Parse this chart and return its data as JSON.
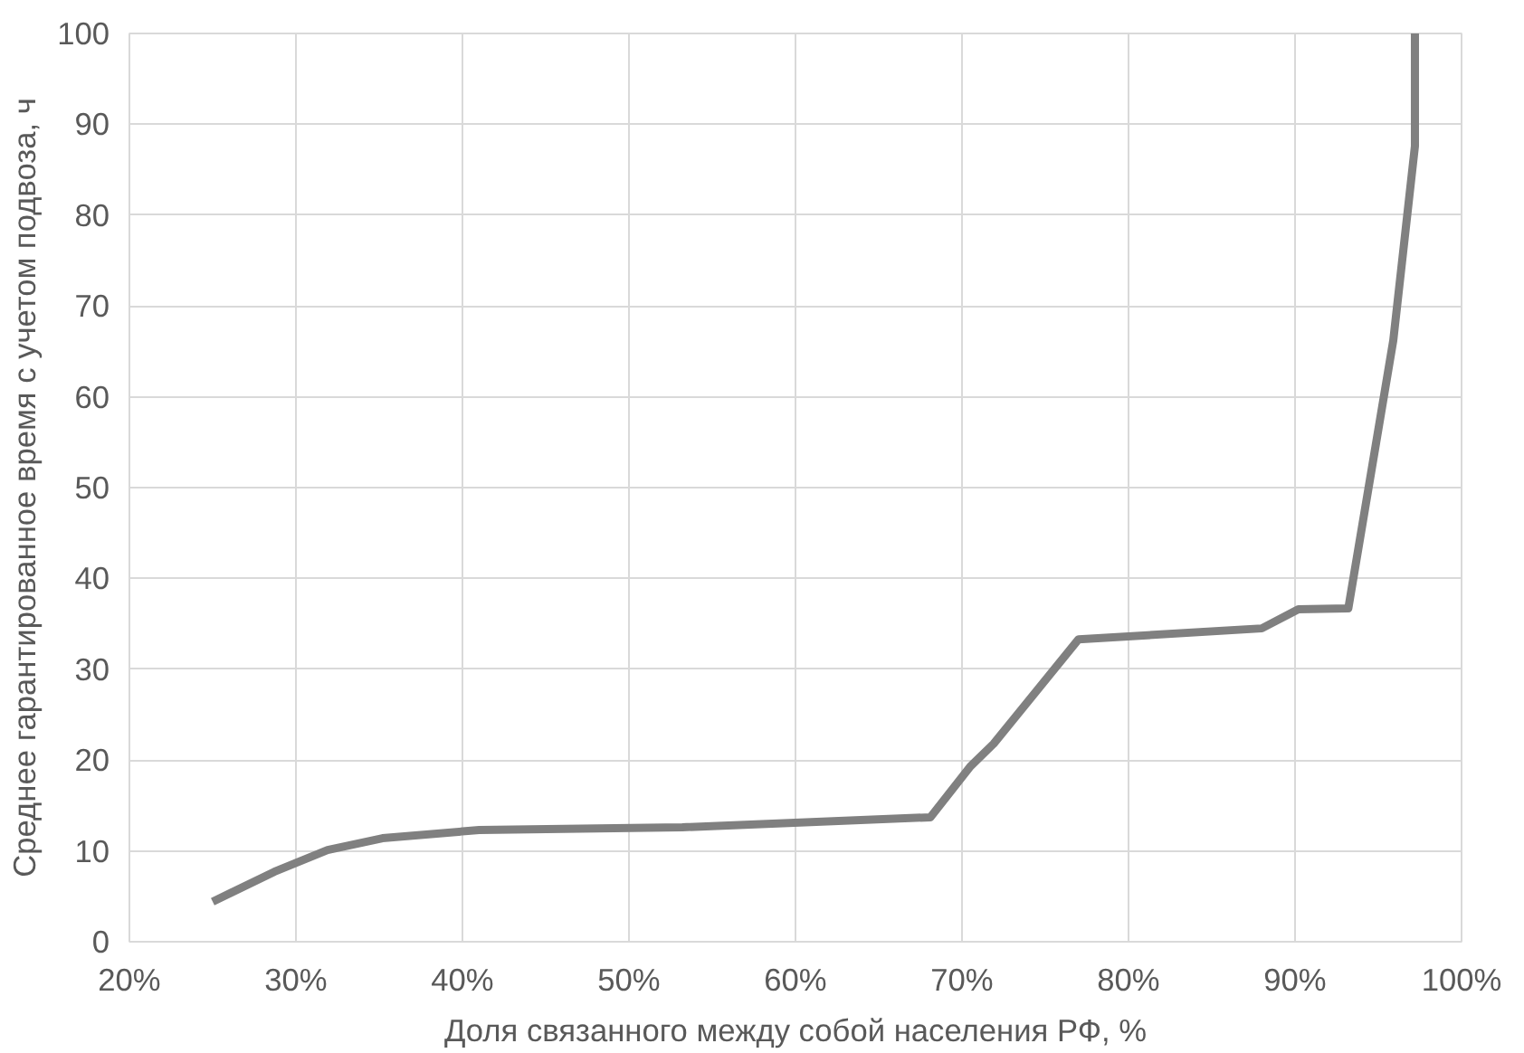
{
  "chart_data": {
    "type": "line",
    "xlabel": "Доля связанного между собой населения РФ, %",
    "ylabel": "Среднее гарантированное время с учетом подвоза, ч",
    "series": [
      {
        "color": "#808080",
        "x": [
          25.0,
          28.7,
          31.9,
          35.2,
          41.0,
          53.2,
          68.1,
          70.5,
          71.9,
          77.0,
          88.0,
          90.2,
          93.2,
          95.9,
          97.2,
          97.2
        ],
        "values": [
          4.4,
          7.7,
          10.1,
          11.4,
          12.3,
          12.6,
          13.7,
          19.3,
          21.8,
          33.3,
          34.5,
          36.6,
          36.7,
          66.2,
          87.6,
          100
        ]
      }
    ],
    "xlim": [
      20,
      100
    ],
    "xticks": [
      {
        "value": 20,
        "label": "20%"
      },
      {
        "value": 30,
        "label": "30%"
      },
      {
        "value": 40,
        "label": "40%"
      },
      {
        "value": 50,
        "label": "50%"
      },
      {
        "value": 60,
        "label": "60%"
      },
      {
        "value": 70,
        "label": "70%"
      },
      {
        "value": 80,
        "label": "80%"
      },
      {
        "value": 90,
        "label": "90%"
      },
      {
        "value": 100,
        "label": "100%"
      }
    ],
    "ylim": [
      0,
      100
    ],
    "yticks": [
      0,
      10,
      20,
      30,
      40,
      50,
      60,
      70,
      80,
      90,
      100
    ],
    "grid": true,
    "line_style": "solid"
  }
}
